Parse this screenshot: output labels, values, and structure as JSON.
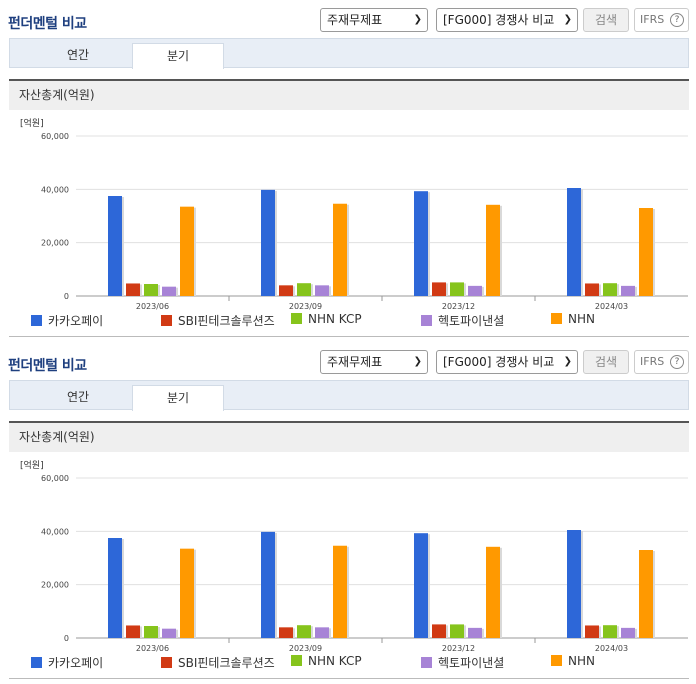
{
  "panels": [
    {
      "title": "펀더멘털 비교",
      "select1": "주재무제표",
      "select2": "[FG000] 경쟁사 비교",
      "search_label": "검색",
      "ifrs_label": "IFRS",
      "tabs": [
        "연간",
        "분기"
      ],
      "active_tab": "분기",
      "section_title": "자산총계(억원)"
    },
    {
      "title": "펀더멘털 비교",
      "select1": "주재무제표",
      "select2": "[FG000] 경쟁사 비교",
      "search_label": "검색",
      "ifrs_label": "IFRS",
      "tabs": [
        "연간",
        "분기"
      ],
      "active_tab": "분기",
      "section_title": "자산총계(억원)"
    }
  ],
  "colors": {
    "accent_title": "#1e3f7f",
    "카카오페이": "#2d67d8",
    "SBI핀테크솔루션즈": "#d13a14",
    "NHN KCP": "#86c41c",
    "헥토파이낸셜": "#a783d6",
    "NHN": "#ff9900"
  },
  "chart_data": [
    {
      "type": "bar",
      "title": "",
      "ylabel": "[억원]",
      "ylim": [
        0,
        60000
      ],
      "yticks": [
        "0",
        "20,000",
        "40,000",
        "60,000"
      ],
      "categories": [
        "2023/06",
        "2023/09",
        "2023/12",
        "2024/03"
      ],
      "series": [
        {
          "name": "카카오페이",
          "values": [
            37500,
            39800,
            39300,
            40500
          ]
        },
        {
          "name": "SBI핀테크솔루션즈",
          "values": [
            4700,
            4000,
            5100,
            4700
          ]
        },
        {
          "name": "NHN KCP",
          "values": [
            4500,
            4800,
            5100,
            4800
          ]
        },
        {
          "name": "헥토파이낸셜",
          "values": [
            3500,
            4000,
            3800,
            3800
          ]
        },
        {
          "name": "NHN",
          "values": [
            33500,
            34600,
            34200,
            33000
          ]
        }
      ],
      "legend_position": "bottom"
    },
    {
      "type": "bar",
      "title": "",
      "ylabel": "[억원]",
      "ylim": [
        0,
        60000
      ],
      "yticks": [
        "0",
        "20,000",
        "40,000",
        "60,000"
      ],
      "categories": [
        "2023/06",
        "2023/09",
        "2023/12",
        "2024/03"
      ],
      "series": [
        {
          "name": "카카오페이",
          "values": [
            37500,
            39800,
            39300,
            40500
          ]
        },
        {
          "name": "SBI핀테크솔루션즈",
          "values": [
            4700,
            4000,
            5100,
            4700
          ]
        },
        {
          "name": "NHN KCP",
          "values": [
            4500,
            4800,
            5100,
            4800
          ]
        },
        {
          "name": "헥토파이낸셜",
          "values": [
            3500,
            4000,
            3800,
            3800
          ]
        },
        {
          "name": "NHN",
          "values": [
            33500,
            34600,
            34200,
            33000
          ]
        }
      ],
      "legend_position": "bottom"
    }
  ]
}
